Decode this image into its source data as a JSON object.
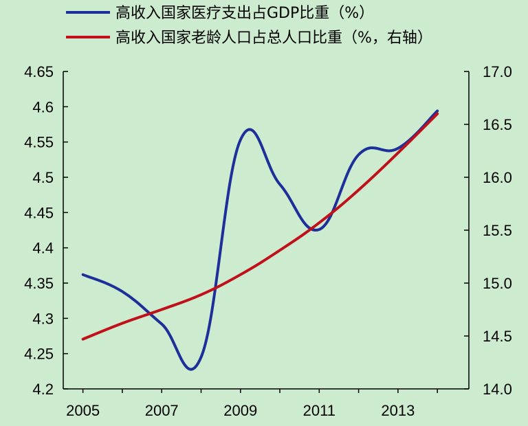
{
  "chart_data": {
    "type": "line",
    "background": "#cdebcf",
    "legend_position": "top",
    "grid": false,
    "x": [
      2005,
      2006,
      2007,
      2008,
      2009,
      2010,
      2011,
      2012,
      2013,
      2014
    ],
    "x_tick_labels": [
      "2005",
      "2007",
      "2009",
      "2011",
      "2013"
    ],
    "x_tick_values": [
      2005,
      2007,
      2009,
      2011,
      2013
    ],
    "x_range": [
      2004.5,
      2014.8
    ],
    "y_left": {
      "range": [
        4.2,
        4.65
      ],
      "ticks": [
        4.2,
        4.25,
        4.3,
        4.35,
        4.4,
        4.45,
        4.5,
        4.55,
        4.6,
        4.65
      ],
      "tick_labels": [
        "4.2",
        "4.25",
        "4.3",
        "4.35",
        "4.4",
        "4.45",
        "4.5",
        "4.55",
        "4.6",
        "4.65"
      ]
    },
    "y_right": {
      "range": [
        14.0,
        17.0
      ],
      "ticks": [
        14.0,
        14.5,
        15.0,
        15.5,
        16.0,
        16.5,
        17.0
      ],
      "tick_labels": [
        "14.0",
        "14.5",
        "15.0",
        "15.5",
        "16.0",
        "16.5",
        "17.0"
      ]
    },
    "series": [
      {
        "name": "高收入国家医疗支出占GDP比重（%）",
        "axis": "left",
        "color": "#1f2f9a",
        "values": [
          4.362,
          4.338,
          4.292,
          4.245,
          4.553,
          4.49,
          4.426,
          4.532,
          4.541,
          4.594
        ]
      },
      {
        "name": "高收入国家老龄人口占总人口比重（%，右轴）",
        "axis": "right",
        "color": "#c0101a",
        "values": [
          14.47,
          14.62,
          14.75,
          14.89,
          15.08,
          15.31,
          15.57,
          15.88,
          16.23,
          16.6
        ]
      }
    ]
  }
}
